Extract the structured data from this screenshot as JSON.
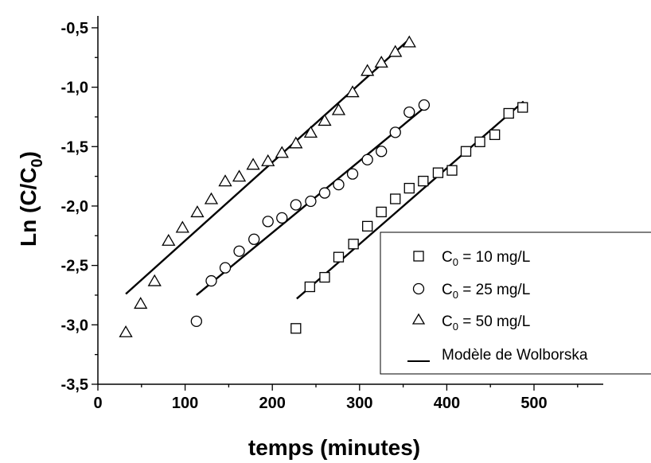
{
  "chart_data": {
    "type": "scatter",
    "xlabel": "temps (minutes)",
    "ylabel": {
      "main": "Ln (C/C",
      "sub": "0",
      "close": ")"
    },
    "xlim": [
      0,
      550
    ],
    "ylim": [
      -3.5,
      -0.4
    ],
    "xticks": [
      0,
      100,
      200,
      300,
      400,
      500
    ],
    "yticks": [
      -3.5,
      -3.0,
      -2.5,
      -2.0,
      -1.5,
      -1.0,
      -0.5
    ],
    "xtick_labels": [
      "0",
      "100",
      "200",
      "300",
      "400",
      "500"
    ],
    "ytick_labels": [
      "-3,5",
      "-3,0",
      "-2,5",
      "-2,0",
      "-1,5",
      "-1,0",
      "-0,5"
    ],
    "grid": false,
    "legend_position": "bottom-right",
    "series": [
      {
        "name": "C0 = 10 mg/L",
        "legend": {
          "pre": "C",
          "sub": "0",
          "post": " = 10 mg/L"
        },
        "marker": "square",
        "x": [
          227,
          243,
          260,
          276,
          293,
          309,
          325,
          341,
          357,
          373,
          390,
          406,
          422,
          438,
          455,
          471,
          487
        ],
        "y": [
          -3.03,
          -2.68,
          -2.6,
          -2.43,
          -2.32,
          -2.17,
          -2.05,
          -1.94,
          -1.85,
          -1.79,
          -1.72,
          -1.7,
          -1.54,
          -1.46,
          -1.4,
          -1.22,
          -1.17
        ],
        "fit": {
          "x": [
            228,
            488
          ],
          "y": [
            -2.78,
            -1.12
          ]
        }
      },
      {
        "name": "C0 = 25 mg/L",
        "legend": {
          "pre": "C",
          "sub": "0",
          "post": " = 25 mg/L"
        },
        "marker": "circle",
        "x": [
          113,
          130,
          146,
          162,
          179,
          195,
          211,
          227,
          244,
          260,
          276,
          292,
          309,
          325,
          341,
          357,
          374
        ],
        "y": [
          -2.97,
          -2.63,
          -2.52,
          -2.38,
          -2.28,
          -2.13,
          -2.1,
          -1.99,
          -1.96,
          -1.89,
          -1.82,
          -1.73,
          -1.61,
          -1.54,
          -1.38,
          -1.21,
          -1.15
        ],
        "fit": {
          "x": [
            113,
            373
          ],
          "y": [
            -2.75,
            -1.18
          ]
        }
      },
      {
        "name": "C0 = 50 mg/L",
        "legend": {
          "pre": "C",
          "sub": "0",
          "post": " = 50 mg/L"
        },
        "marker": "triangle",
        "x": [
          32,
          49,
          65,
          81,
          97,
          114,
          130,
          146,
          162,
          178,
          195,
          211,
          227,
          244,
          260,
          276,
          292,
          309,
          325,
          341,
          357
        ],
        "y": [
          -3.06,
          -2.82,
          -2.63,
          -2.29,
          -2.18,
          -2.05,
          -1.94,
          -1.79,
          -1.75,
          -1.65,
          -1.62,
          -1.55,
          -1.47,
          -1.38,
          -1.28,
          -1.19,
          -1.04,
          -0.86,
          -0.79,
          -0.7,
          -0.62
        ],
        "fit": {
          "x": [
            32,
            358
          ],
          "y": [
            -2.74,
            -0.59
          ]
        }
      }
    ],
    "fit_legend": "Modèle de Wolborska"
  }
}
